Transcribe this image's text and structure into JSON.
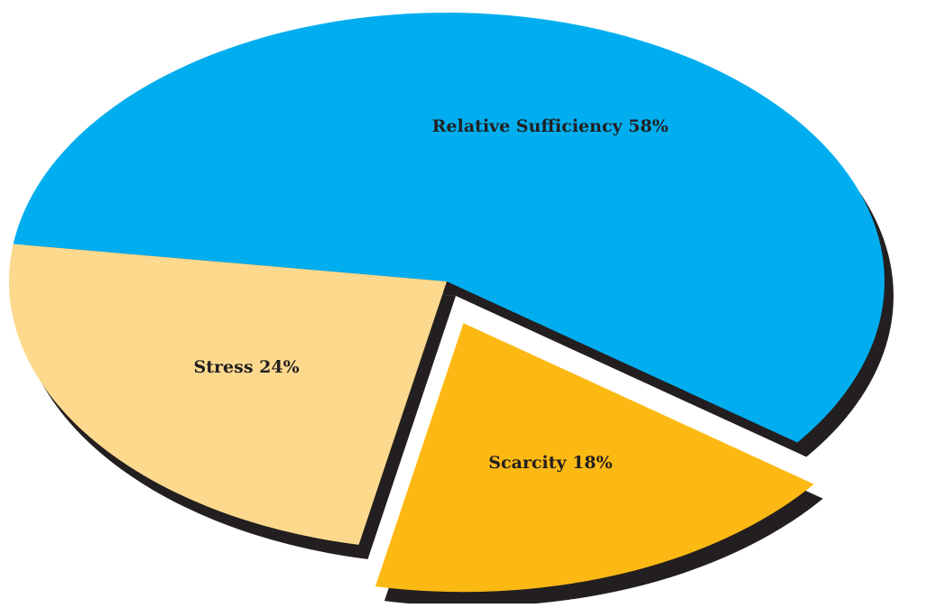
{
  "chart_data": {
    "type": "pie",
    "style": "3d-exploded",
    "title": "",
    "slices": [
      {
        "label": "Relative Sufficiency",
        "value": 58,
        "display": "Relative Sufficiency 58%",
        "color": "#00aeef",
        "exploded": false
      },
      {
        "label": "Scarcity",
        "value": 18,
        "display": "Scarcity 18%",
        "color": "#fdb913",
        "exploded": true
      },
      {
        "label": "Stress",
        "value": 24,
        "display": "Stress 24%",
        "color": "#fdd98e",
        "exploded": false
      }
    ],
    "depth_color": "#231f20",
    "legend": "none"
  }
}
